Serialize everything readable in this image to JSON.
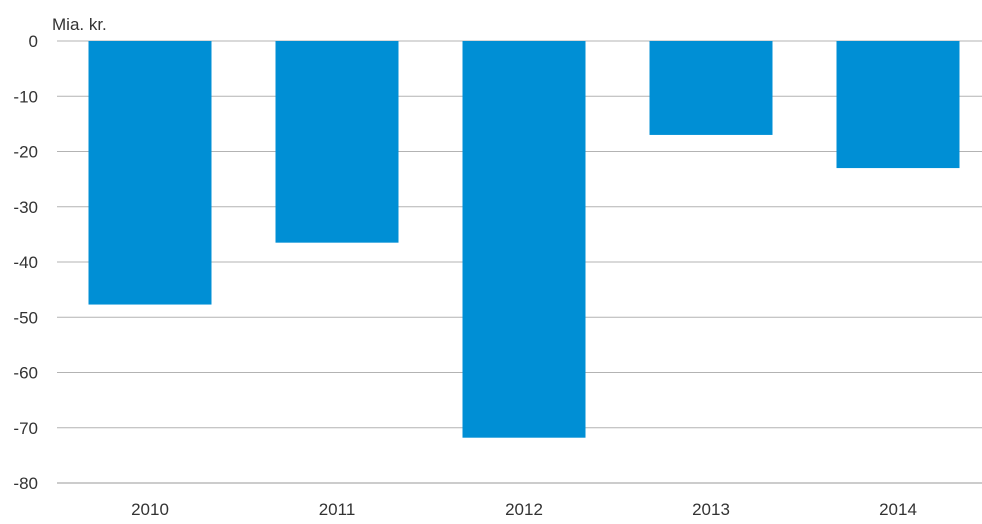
{
  "chart_data": {
    "type": "bar",
    "unit_label": "Mia. kr.",
    "categories": [
      "2010",
      "2011",
      "2012",
      "2013",
      "2014"
    ],
    "values": [
      -47.7,
      -36.5,
      -71.8,
      -17,
      -23
    ],
    "ylim": [
      -80,
      0
    ],
    "yticks": [
      0,
      -10,
      -20,
      -30,
      -40,
      -50,
      -60,
      -70,
      -80
    ],
    "ytick_labels": [
      "0",
      "-10",
      "-20",
      "-30",
      "-40",
      "-50",
      "-60",
      "-70",
      "-80"
    ],
    "grid": true,
    "bar_color": "#008fd5"
  }
}
